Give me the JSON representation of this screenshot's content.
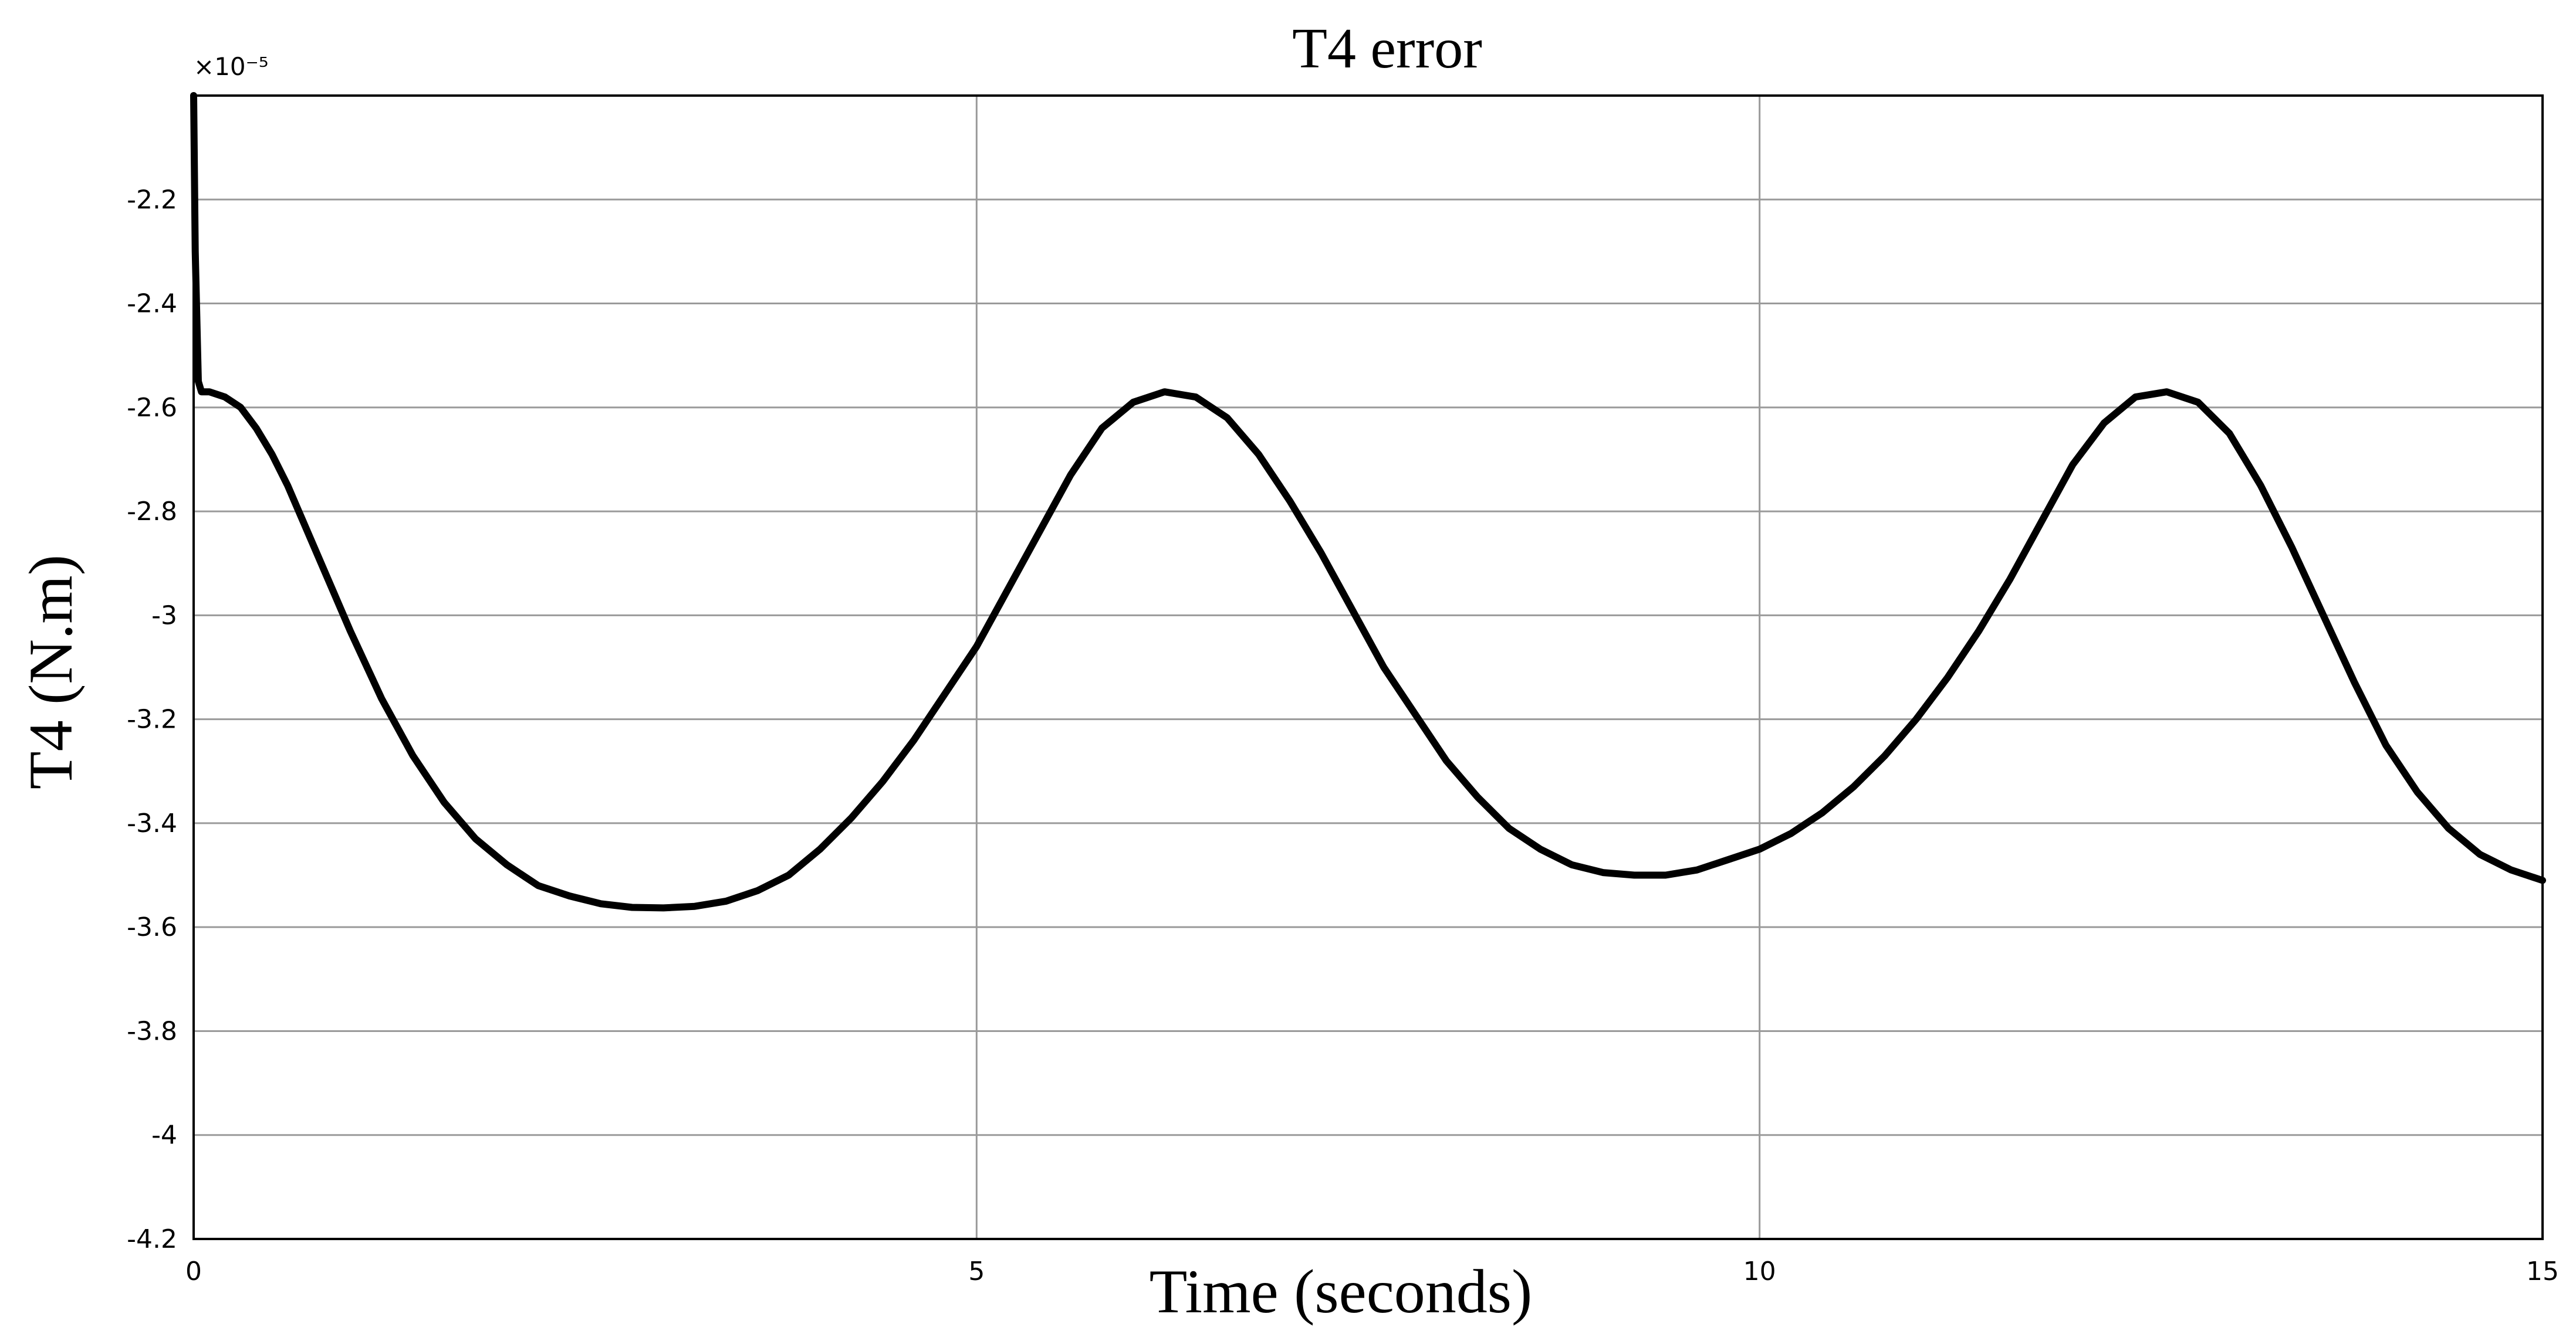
{
  "chart_data": {
    "type": "line",
    "title": "T4 error",
    "xlabel": "Time (seconds)",
    "ylabel": "T4 (N.m)",
    "y_exponent_label": "×10⁻⁵",
    "xlim": [
      0,
      15
    ],
    "ylim": [
      -4.2,
      -2.0
    ],
    "x_ticks": [
      0,
      5,
      10,
      15
    ],
    "x_tick_labels": [
      "0",
      "5",
      "10",
      "15"
    ],
    "y_ticks": [
      -2.2,
      -2.4,
      -2.6,
      -2.8,
      -3.0,
      -3.2,
      -3.4,
      -3.6,
      -3.8,
      -4.0,
      -4.2
    ],
    "y_tick_labels": [
      "-2.2",
      "-2.4",
      "-2.6",
      "-2.8",
      "-3",
      "-3.2",
      "-3.4",
      "-3.6",
      "-3.8",
      "-4",
      "-4.2"
    ],
    "grid": true,
    "line_color": "#000000",
    "series": [
      {
        "x": [
          0,
          0.01,
          0.03,
          0.05,
          0.1,
          0.2,
          0.3,
          0.4,
          0.5,
          0.6,
          0.7,
          0.8,
          0.9,
          1.0,
          1.2,
          1.4,
          1.6,
          1.8,
          2.0,
          2.2,
          2.4,
          2.6,
          2.8,
          3.0,
          3.2,
          3.4,
          3.6,
          3.8,
          4.0,
          4.2,
          4.4,
          4.6,
          4.8,
          5.0,
          5.2,
          5.4,
          5.6,
          5.8,
          6.0,
          6.2,
          6.4,
          6.6,
          6.8,
          7.0,
          7.2,
          7.4,
          7.6,
          7.8,
          8.0,
          8.2,
          8.4,
          8.6,
          8.8,
          9.0,
          9.2,
          9.4,
          9.6,
          9.8,
          10.0,
          10.2,
          10.4,
          10.6,
          10.8,
          11.0,
          11.2,
          11.4,
          11.6,
          11.8,
          12.0,
          12.2,
          12.4,
          12.6,
          12.8,
          13.0,
          13.2,
          13.4,
          13.6,
          13.8,
          14.0,
          14.2,
          14.4,
          14.6,
          14.8,
          15.0
        ],
        "values": [
          -2.0,
          -2.3,
          -2.55,
          -2.57,
          -2.57,
          -2.58,
          -2.6,
          -2.64,
          -2.69,
          -2.75,
          -2.82,
          -2.89,
          -2.96,
          -3.03,
          -3.16,
          -3.27,
          -3.36,
          -3.43,
          -3.48,
          -3.52,
          -3.54,
          -3.555,
          -3.562,
          -3.563,
          -3.56,
          -3.55,
          -3.53,
          -3.5,
          -3.45,
          -3.39,
          -3.32,
          -3.24,
          -3.15,
          -3.06,
          -2.95,
          -2.84,
          -2.73,
          -2.64,
          -2.59,
          -2.57,
          -2.58,
          -2.62,
          -2.69,
          -2.78,
          -2.88,
          -2.99,
          -3.1,
          -3.19,
          -3.28,
          -3.35,
          -3.41,
          -3.45,
          -3.48,
          -3.495,
          -3.5,
          -3.5,
          -3.49,
          -3.47,
          -3.45,
          -3.42,
          -3.38,
          -3.33,
          -3.27,
          -3.2,
          -3.12,
          -3.03,
          -2.93,
          -2.82,
          -2.71,
          -2.63,
          -2.58,
          -2.57,
          -2.59,
          -2.65,
          -2.75,
          -2.87,
          -3.0,
          -3.13,
          -3.25,
          -3.34,
          -3.41,
          -3.46,
          -3.49,
          -3.51
        ]
      }
    ]
  }
}
